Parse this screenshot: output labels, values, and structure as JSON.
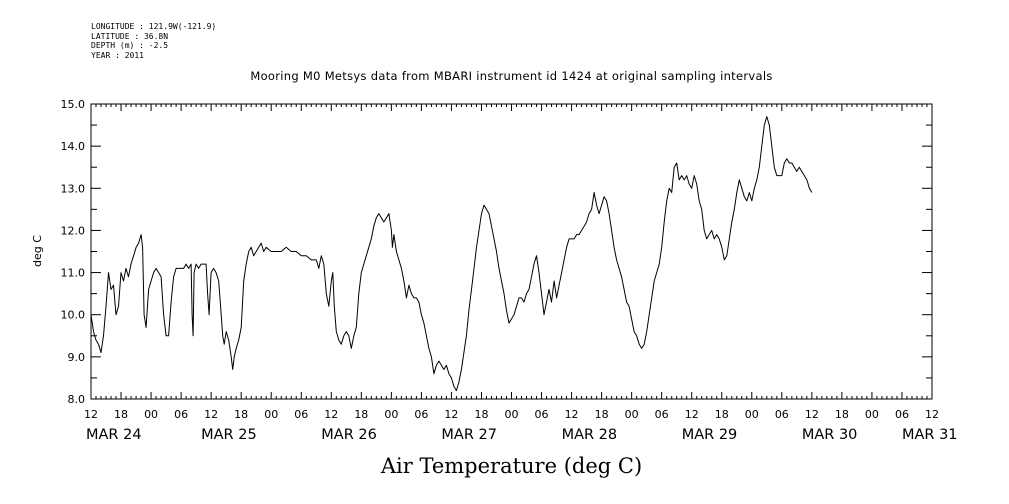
{
  "metadata": {
    "longitude": "LONGITUDE : 121.9W(-121.9)",
    "latitude": "LATITUDE : 36.8N",
    "depth": "DEPTH (m) : -2.5",
    "year": "YEAR : 2011"
  },
  "title": "Mooring M0 Metsys data from MBARI instrument id 1424 at original sampling intervals",
  "bottom_title": "Air Temperature (deg C)",
  "chart_data": {
    "type": "line",
    "title": "Mooring M0 Metsys data from MBARI instrument id 1424 at original sampling intervals",
    "ylabel": "deg C",
    "xlabel": "",
    "ylim": [
      8.0,
      15.0
    ],
    "yticks": [
      "8.0",
      "9.0",
      "10.0",
      "11.0",
      "12.0",
      "13.0",
      "14.0",
      "15.0"
    ],
    "x_units": "hours from 2011-03-24 12:00",
    "xlim": [
      0,
      168
    ],
    "hour_ticks": [
      "12",
      "18",
      "00",
      "06",
      "12",
      "18",
      "00",
      "06",
      "12",
      "18",
      "00",
      "06",
      "12",
      "18",
      "00",
      "06",
      "12",
      "18",
      "00",
      "06",
      "12",
      "18",
      "00",
      "06",
      "12",
      "18",
      "00",
      "06",
      "12"
    ],
    "date_labels": [
      {
        "label": "MAR 24",
        "x": 0
      },
      {
        "label": "MAR 25",
        "x": 23
      },
      {
        "label": "MAR 26",
        "x": 47
      },
      {
        "label": "MAR 27",
        "x": 71
      },
      {
        "label": "MAR 28",
        "x": 95
      },
      {
        "label": "MAR 29",
        "x": 119
      },
      {
        "label": "MAR 30",
        "x": 143
      },
      {
        "label": "MAR 31",
        "x": 163
      }
    ],
    "series": [
      {
        "color": "#000000",
        "points": [
          [
            0,
            10.0
          ],
          [
            0.5,
            9.6
          ],
          [
            1,
            9.4
          ],
          [
            1.5,
            9.3
          ],
          [
            2,
            9.1
          ],
          [
            2.5,
            9.5
          ],
          [
            3,
            10.2
          ],
          [
            3.5,
            11.0
          ],
          [
            4,
            10.6
          ],
          [
            4.5,
            10.7
          ],
          [
            5,
            10.0
          ],
          [
            5.5,
            10.2
          ],
          [
            6,
            11.0
          ],
          [
            6.5,
            10.8
          ],
          [
            7,
            11.1
          ],
          [
            7.5,
            10.9
          ],
          [
            8,
            11.2
          ],
          [
            8.5,
            11.4
          ],
          [
            9,
            11.6
          ],
          [
            9.5,
            11.7
          ],
          [
            10,
            11.9
          ],
          [
            10.3,
            11.6
          ],
          [
            10.6,
            10.0
          ],
          [
            11,
            9.7
          ],
          [
            11.5,
            10.6
          ],
          [
            12,
            10.8
          ],
          [
            12.5,
            11.0
          ],
          [
            13,
            11.1
          ],
          [
            13.5,
            11.0
          ],
          [
            14,
            10.9
          ],
          [
            14.5,
            10.0
          ],
          [
            15,
            9.5
          ],
          [
            15.5,
            9.5
          ],
          [
            16,
            10.3
          ],
          [
            16.5,
            10.9
          ],
          [
            17,
            11.1
          ],
          [
            17.5,
            11.1
          ],
          [
            18,
            11.1
          ],
          [
            18.5,
            11.1
          ],
          [
            19,
            11.2
          ],
          [
            19.5,
            11.1
          ],
          [
            20,
            11.2
          ],
          [
            20.2,
            10.0
          ],
          [
            20.4,
            9.5
          ],
          [
            20.6,
            11.0
          ],
          [
            21,
            11.2
          ],
          [
            21.5,
            11.1
          ],
          [
            22,
            11.2
          ],
          [
            22.5,
            11.2
          ],
          [
            23,
            11.2
          ],
          [
            23.3,
            10.5
          ],
          [
            23.6,
            10.0
          ],
          [
            24,
            11.0
          ],
          [
            24.5,
            11.1
          ],
          [
            25,
            11.0
          ],
          [
            25.5,
            10.8
          ],
          [
            26,
            10.0
          ],
          [
            26.3,
            9.5
          ],
          [
            26.6,
            9.3
          ],
          [
            27,
            9.6
          ],
          [
            27.5,
            9.4
          ],
          [
            28,
            9.0
          ],
          [
            28.3,
            8.7
          ],
          [
            28.6,
            9.0
          ],
          [
            29,
            9.2
          ],
          [
            29.5,
            9.4
          ],
          [
            30,
            9.7
          ],
          [
            30.5,
            10.8
          ],
          [
            31,
            11.2
          ],
          [
            31.5,
            11.5
          ],
          [
            32,
            11.6
          ],
          [
            32.5,
            11.4
          ],
          [
            33,
            11.5
          ],
          [
            33.5,
            11.6
          ],
          [
            34,
            11.7
          ],
          [
            34.5,
            11.5
          ],
          [
            35,
            11.6
          ],
          [
            36,
            11.5
          ],
          [
            37,
            11.5
          ],
          [
            38,
            11.5
          ],
          [
            39,
            11.6
          ],
          [
            40,
            11.5
          ],
          [
            41,
            11.5
          ],
          [
            42,
            11.4
          ],
          [
            43,
            11.4
          ],
          [
            44,
            11.3
          ],
          [
            45,
            11.3
          ],
          [
            45.5,
            11.1
          ],
          [
            46,
            11.4
          ],
          [
            46.5,
            11.2
          ],
          [
            47,
            10.5
          ],
          [
            47.5,
            10.2
          ],
          [
            48,
            10.8
          ],
          [
            48.3,
            11.0
          ],
          [
            48.6,
            10.2
          ],
          [
            49,
            9.6
          ],
          [
            49.5,
            9.4
          ],
          [
            50,
            9.3
          ],
          [
            50.5,
            9.5
          ],
          [
            51,
            9.6
          ],
          [
            51.5,
            9.5
          ],
          [
            52,
            9.2
          ],
          [
            52.5,
            9.5
          ],
          [
            53,
            9.7
          ],
          [
            53.5,
            10.5
          ],
          [
            54,
            11.0
          ],
          [
            54.5,
            11.2
          ],
          [
            55,
            11.4
          ],
          [
            55.5,
            11.6
          ],
          [
            56,
            11.8
          ],
          [
            56.5,
            12.1
          ],
          [
            57,
            12.3
          ],
          [
            57.5,
            12.4
          ],
          [
            58,
            12.3
          ],
          [
            58.5,
            12.2
          ],
          [
            59,
            12.3
          ],
          [
            59.5,
            12.4
          ],
          [
            60,
            12.0
          ],
          [
            60.2,
            11.6
          ],
          [
            60.5,
            11.9
          ],
          [
            61,
            11.5
          ],
          [
            61.5,
            11.3
          ],
          [
            62,
            11.1
          ],
          [
            62.5,
            10.8
          ],
          [
            63,
            10.4
          ],
          [
            63.5,
            10.7
          ],
          [
            64,
            10.5
          ],
          [
            64.5,
            10.4
          ],
          [
            65,
            10.4
          ],
          [
            65.5,
            10.3
          ],
          [
            66,
            10.0
          ],
          [
            66.5,
            9.8
          ],
          [
            67,
            9.5
          ],
          [
            67.5,
            9.2
          ],
          [
            68,
            9.0
          ],
          [
            68.5,
            8.6
          ],
          [
            69,
            8.8
          ],
          [
            69.5,
            8.9
          ],
          [
            70,
            8.8
          ],
          [
            70.5,
            8.7
          ],
          [
            71,
            8.8
          ],
          [
            71.5,
            8.6
          ],
          [
            72,
            8.5
          ],
          [
            72.5,
            8.3
          ],
          [
            73,
            8.2
          ],
          [
            73.5,
            8.4
          ],
          [
            74,
            8.7
          ],
          [
            74.5,
            9.1
          ],
          [
            75,
            9.5
          ],
          [
            75.5,
            10.1
          ],
          [
            76,
            10.6
          ],
          [
            76.5,
            11.1
          ],
          [
            77,
            11.6
          ],
          [
            77.5,
            12.0
          ],
          [
            78,
            12.4
          ],
          [
            78.5,
            12.6
          ],
          [
            79,
            12.5
          ],
          [
            79.5,
            12.4
          ],
          [
            80,
            12.1
          ],
          [
            80.5,
            11.8
          ],
          [
            81,
            11.5
          ],
          [
            81.5,
            11.1
          ],
          [
            82,
            10.8
          ],
          [
            82.5,
            10.5
          ],
          [
            83,
            10.1
          ],
          [
            83.5,
            9.8
          ],
          [
            84,
            9.9
          ],
          [
            84.5,
            10.0
          ],
          [
            85,
            10.2
          ],
          [
            85.5,
            10.4
          ],
          [
            86,
            10.4
          ],
          [
            86.5,
            10.3
          ],
          [
            87,
            10.5
          ],
          [
            87.5,
            10.6
          ],
          [
            88,
            10.9
          ],
          [
            88.5,
            11.2
          ],
          [
            89,
            11.4
          ],
          [
            89.5,
            11.0
          ],
          [
            90,
            10.5
          ],
          [
            90.5,
            10.0
          ],
          [
            91,
            10.3
          ],
          [
            91.5,
            10.6
          ],
          [
            92,
            10.3
          ],
          [
            92.5,
            10.8
          ],
          [
            93,
            10.4
          ],
          [
            93.5,
            10.7
          ],
          [
            94,
            11.0
          ],
          [
            94.5,
            11.3
          ],
          [
            95,
            11.6
          ],
          [
            95.5,
            11.8
          ],
          [
            96,
            11.8
          ],
          [
            96.5,
            11.8
          ],
          [
            97,
            11.9
          ],
          [
            97.5,
            11.9
          ],
          [
            98,
            12.0
          ],
          [
            98.5,
            12.1
          ],
          [
            99,
            12.2
          ],
          [
            99.5,
            12.4
          ],
          [
            100,
            12.5
          ],
          [
            100.5,
            12.9
          ],
          [
            101,
            12.6
          ],
          [
            101.5,
            12.4
          ],
          [
            102,
            12.6
          ],
          [
            102.5,
            12.8
          ],
          [
            103,
            12.7
          ],
          [
            103.5,
            12.4
          ],
          [
            104,
            12.0
          ],
          [
            104.5,
            11.6
          ],
          [
            105,
            11.3
          ],
          [
            105.5,
            11.1
          ],
          [
            106,
            10.9
          ],
          [
            106.5,
            10.6
          ],
          [
            107,
            10.3
          ],
          [
            107.5,
            10.2
          ],
          [
            108,
            9.9
          ],
          [
            108.5,
            9.6
          ],
          [
            109,
            9.5
          ],
          [
            109.5,
            9.3
          ],
          [
            110,
            9.2
          ],
          [
            110.5,
            9.3
          ],
          [
            111,
            9.6
          ],
          [
            111.5,
            10.0
          ],
          [
            112,
            10.4
          ],
          [
            112.5,
            10.8
          ],
          [
            113,
            11.0
          ],
          [
            113.5,
            11.2
          ],
          [
            114,
            11.6
          ],
          [
            114.5,
            12.2
          ],
          [
            115,
            12.7
          ],
          [
            115.5,
            13.0
          ],
          [
            116,
            12.9
          ],
          [
            116.5,
            13.5
          ],
          [
            117,
            13.6
          ],
          [
            117.5,
            13.2
          ],
          [
            118,
            13.3
          ],
          [
            118.5,
            13.2
          ],
          [
            119,
            13.3
          ],
          [
            119.5,
            13.1
          ],
          [
            120,
            13.0
          ],
          [
            120.5,
            13.3
          ],
          [
            121,
            13.1
          ],
          [
            121.5,
            12.7
          ],
          [
            122,
            12.5
          ],
          [
            122.5,
            12.0
          ],
          [
            123,
            11.8
          ],
          [
            123.5,
            11.9
          ],
          [
            124,
            12.0
          ],
          [
            124.5,
            11.8
          ],
          [
            125,
            11.9
          ],
          [
            125.5,
            11.8
          ],
          [
            126,
            11.6
          ],
          [
            126.5,
            11.3
          ],
          [
            127,
            11.4
          ],
          [
            127.5,
            11.8
          ],
          [
            128,
            12.2
          ],
          [
            128.5,
            12.5
          ],
          [
            129,
            12.9
          ],
          [
            129.5,
            13.2
          ],
          [
            130,
            13.0
          ],
          [
            130.5,
            12.8
          ],
          [
            131,
            12.7
          ],
          [
            131.5,
            12.9
          ],
          [
            132,
            12.7
          ],
          [
            132.5,
            13.0
          ],
          [
            133,
            13.2
          ],
          [
            133.5,
            13.5
          ],
          [
            134,
            14.0
          ],
          [
            134.5,
            14.5
          ],
          [
            135,
            14.7
          ],
          [
            135.5,
            14.5
          ],
          [
            136,
            14.0
          ],
          [
            136.5,
            13.5
          ],
          [
            137,
            13.3
          ],
          [
            137.5,
            13.3
          ],
          [
            138,
            13.3
          ],
          [
            138.5,
            13.6
          ],
          [
            139,
            13.7
          ],
          [
            139.5,
            13.6
          ],
          [
            140,
            13.6
          ],
          [
            140.5,
            13.5
          ],
          [
            141,
            13.4
          ],
          [
            141.5,
            13.5
          ],
          [
            142,
            13.4
          ],
          [
            142.5,
            13.3
          ],
          [
            143,
            13.2
          ],
          [
            143.5,
            13.0
          ],
          [
            144,
            12.9
          ]
        ]
      }
    ],
    "grid": false,
    "legend": "none"
  }
}
